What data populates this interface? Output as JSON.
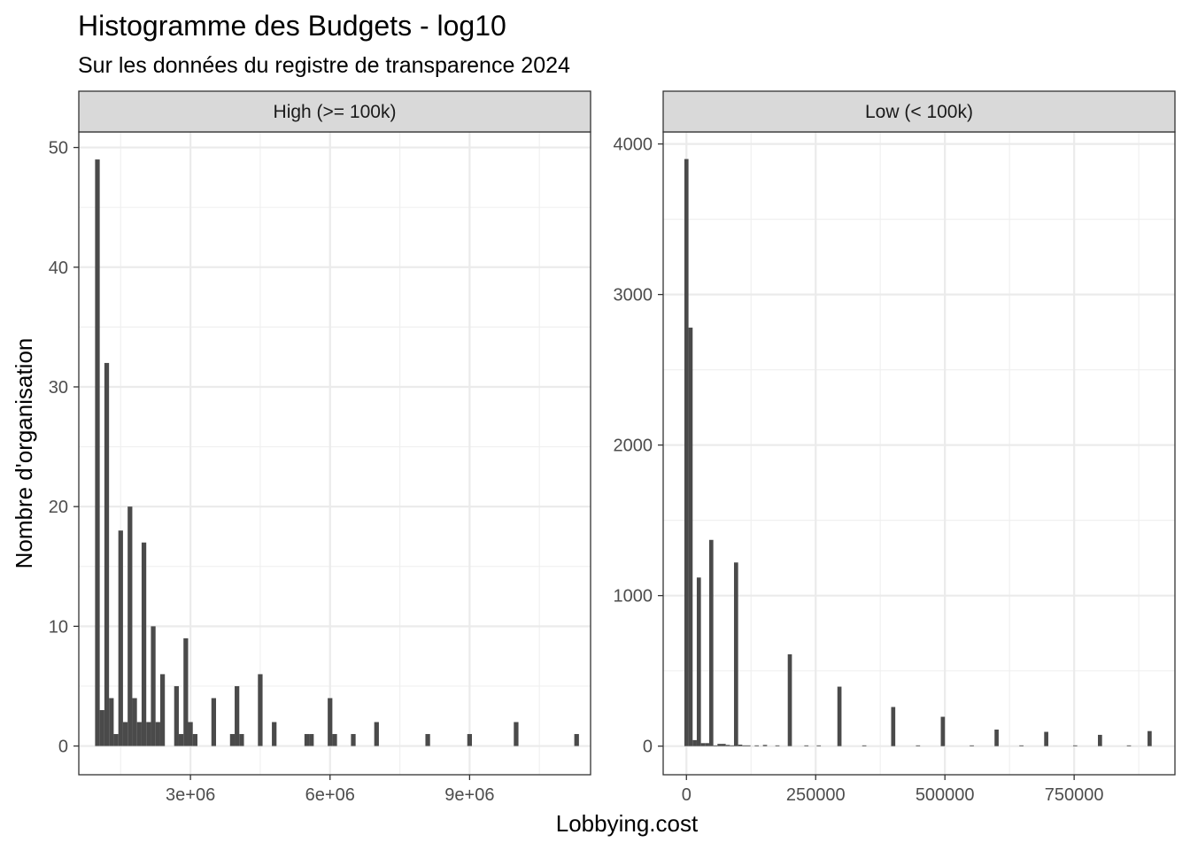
{
  "chart_data": {
    "type": "bar",
    "title": "Histogramme des Budgets - log10",
    "subtitle": "Sur les données du registre de transparence 2024",
    "xlabel": "Lobbying.cost",
    "ylabel": "Nombre d'organisation",
    "grid": true,
    "facets": [
      {
        "label": "High (>= 100k)",
        "xlim": [
          600000,
          11600000
        ],
        "ylim": [
          -2.4,
          51.3
        ],
        "bin_width": 100000,
        "x_ticks": [
          3000000,
          6000000,
          9000000
        ],
        "x_tick_labels": [
          "3e+06",
          "6e+06",
          "9e+06"
        ],
        "y_ticks": [
          0,
          10,
          20,
          30,
          40,
          50
        ],
        "y_tick_labels": [
          "0",
          "10",
          "20",
          "30",
          "40",
          "50"
        ],
        "bins": [
          {
            "x": 1000000,
            "count": 49
          },
          {
            "x": 1100000,
            "count": 3
          },
          {
            "x": 1200000,
            "count": 32
          },
          {
            "x": 1300000,
            "count": 4
          },
          {
            "x": 1400000,
            "count": 1
          },
          {
            "x": 1500000,
            "count": 18
          },
          {
            "x": 1600000,
            "count": 2
          },
          {
            "x": 1700000,
            "count": 20
          },
          {
            "x": 1800000,
            "count": 4
          },
          {
            "x": 1900000,
            "count": 2
          },
          {
            "x": 2000000,
            "count": 17
          },
          {
            "x": 2100000,
            "count": 2
          },
          {
            "x": 2200000,
            "count": 10
          },
          {
            "x": 2300000,
            "count": 2
          },
          {
            "x": 2400000,
            "count": 6
          },
          {
            "x": 2700000,
            "count": 5
          },
          {
            "x": 2800000,
            "count": 1
          },
          {
            "x": 2900000,
            "count": 9
          },
          {
            "x": 3000000,
            "count": 2
          },
          {
            "x": 3100000,
            "count": 1
          },
          {
            "x": 3500000,
            "count": 4
          },
          {
            "x": 3900000,
            "count": 1
          },
          {
            "x": 4000000,
            "count": 5
          },
          {
            "x": 4100000,
            "count": 1
          },
          {
            "x": 4500000,
            "count": 6
          },
          {
            "x": 4800000,
            "count": 2
          },
          {
            "x": 5500000,
            "count": 1
          },
          {
            "x": 5600000,
            "count": 1
          },
          {
            "x": 6000000,
            "count": 4
          },
          {
            "x": 6100000,
            "count": 1
          },
          {
            "x": 6500000,
            "count": 1
          },
          {
            "x": 7000000,
            "count": 2
          },
          {
            "x": 8100000,
            "count": 1
          },
          {
            "x": 9000000,
            "count": 1
          },
          {
            "x": 10000000,
            "count": 2
          },
          {
            "x": 11300000,
            "count": 1
          }
        ]
      },
      {
        "label": "Low (< 100k)",
        "xlim": [
          -45000,
          945000
        ],
        "ylim": [
          -190,
          4080
        ],
        "bin_width": 8000,
        "x_ticks": [
          0,
          250000,
          500000,
          750000
        ],
        "x_tick_labels": [
          "0",
          "250000",
          "500000",
          "750000"
        ],
        "y_ticks": [
          0,
          1000,
          2000,
          3000,
          4000
        ],
        "y_tick_labels": [
          "0",
          "1000",
          "2000",
          "3000",
          "4000"
        ],
        "bins": [
          {
            "x": 0,
            "count": 3900
          },
          {
            "x": 8000,
            "count": 2780
          },
          {
            "x": 16000,
            "count": 40
          },
          {
            "x": 24000,
            "count": 1120
          },
          {
            "x": 32000,
            "count": 20
          },
          {
            "x": 40000,
            "count": 20
          },
          {
            "x": 48000,
            "count": 1370
          },
          {
            "x": 56000,
            "count": 5
          },
          {
            "x": 64000,
            "count": 15
          },
          {
            "x": 72000,
            "count": 15
          },
          {
            "x": 80000,
            "count": 8
          },
          {
            "x": 88000,
            "count": 5
          },
          {
            "x": 96000,
            "count": 1220
          },
          {
            "x": 104000,
            "count": 10
          },
          {
            "x": 112000,
            "count": 5
          },
          {
            "x": 120000,
            "count": 5
          },
          {
            "x": 136000,
            "count": 5
          },
          {
            "x": 152000,
            "count": 8
          },
          {
            "x": 176000,
            "count": 5
          },
          {
            "x": 200000,
            "count": 610
          },
          {
            "x": 232000,
            "count": 5
          },
          {
            "x": 256000,
            "count": 5
          },
          {
            "x": 296000,
            "count": 395
          },
          {
            "x": 344000,
            "count": 5
          },
          {
            "x": 400000,
            "count": 260
          },
          {
            "x": 448000,
            "count": 5
          },
          {
            "x": 496000,
            "count": 195
          },
          {
            "x": 552000,
            "count": 5
          },
          {
            "x": 600000,
            "count": 110
          },
          {
            "x": 648000,
            "count": 5
          },
          {
            "x": 696000,
            "count": 95
          },
          {
            "x": 752000,
            "count": 5
          },
          {
            "x": 800000,
            "count": 75
          },
          {
            "x": 856000,
            "count": 5
          },
          {
            "x": 896000,
            "count": 100
          }
        ]
      }
    ]
  }
}
